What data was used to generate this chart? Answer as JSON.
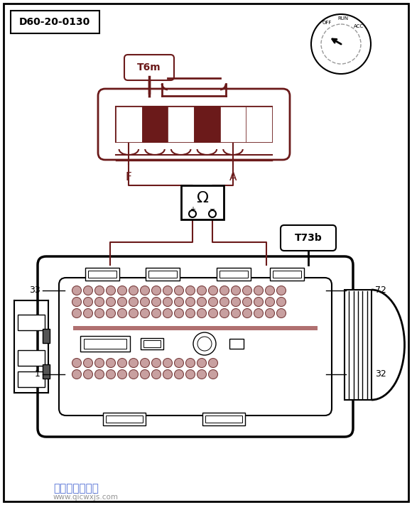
{
  "title": "D60-20-0130",
  "bg_color": "#ffffff",
  "border_color": "#000000",
  "dark_red": "#6b1a1a",
  "label_color": "#6b1a1a",
  "black": "#000000",
  "gray": "#888888",
  "light_gray": "#cccccc",
  "pin_colors_top": "#c8a8a8",
  "pin_colors_bot": "#c8a8a8",
  "connector1_label": "T6m",
  "connector2_label": "T73b",
  "pin_F_label": "F",
  "pin_A_label": "A",
  "pin_33_label": "33",
  "pin_1_label": "1",
  "pin_72_label": "72",
  "pin_32_label": "32",
  "watermark": "汽车维修技术网",
  "watermark2": "www.qicwxjs.com"
}
